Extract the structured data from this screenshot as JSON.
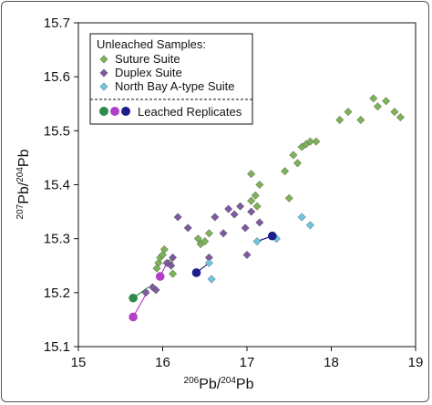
{
  "chart_data": {
    "type": "scatter",
    "xlabel": "206Pb/204Pb",
    "ylabel": "207Pb/204Pb",
    "xlabel_parts": {
      "sup1": "206",
      "base1": "Pb/",
      "sup2": "204",
      "base2": "Pb"
    },
    "ylabel_parts": {
      "sup1": "207",
      "base1": "Pb/",
      "sup2": "204",
      "base2": "Pb"
    },
    "xlim": [
      15,
      19
    ],
    "ylim": [
      15.1,
      15.7
    ],
    "xticks": [
      "15",
      "16",
      "17",
      "18",
      "19"
    ],
    "yticks": [
      "15.1",
      "15.2",
      "15.3",
      "15.4",
      "15.5",
      "15.6",
      "15.7"
    ],
    "grid": false,
    "legend": {
      "position": "top-left",
      "header": "Unleached Samples:",
      "entries": [
        "Suture Suite",
        "Duplex Suite",
        "North Bay A-type Suite"
      ],
      "leached_label": "Leached Replicates"
    },
    "series": [
      {
        "name": "Suture Suite",
        "marker": "diamond",
        "color": "#7db356",
        "points": [
          [
            15.95,
            15.255
          ],
          [
            15.93,
            15.245
          ],
          [
            15.97,
            15.265
          ],
          [
            16.02,
            15.28
          ],
          [
            16.08,
            15.255
          ],
          [
            16.12,
            15.235
          ],
          [
            16.45,
            15.29
          ],
          [
            16.5,
            15.295
          ],
          [
            16.55,
            15.31
          ],
          [
            16.42,
            15.3
          ],
          [
            17.05,
            15.42
          ],
          [
            17.1,
            15.38
          ],
          [
            17.05,
            15.37
          ],
          [
            17.15,
            15.4
          ],
          [
            17.12,
            15.36
          ],
          [
            17.45,
            15.425
          ],
          [
            17.5,
            15.375
          ],
          [
            17.55,
            15.455
          ],
          [
            17.6,
            15.44
          ],
          [
            17.65,
            15.47
          ],
          [
            17.7,
            15.475
          ],
          [
            17.75,
            15.48
          ],
          [
            17.82,
            15.48
          ],
          [
            18.1,
            15.52
          ],
          [
            18.2,
            15.535
          ],
          [
            18.35,
            15.52
          ],
          [
            18.5,
            15.56
          ],
          [
            18.55,
            15.545
          ],
          [
            18.65,
            15.555
          ],
          [
            18.75,
            15.535
          ],
          [
            18.82,
            15.525
          ],
          [
            16.0,
            15.27
          ]
        ]
      },
      {
        "name": "Duplex Suite",
        "marker": "diamond",
        "color": "#7b5aa0",
        "points": [
          [
            15.8,
            15.2
          ],
          [
            15.88,
            15.21
          ],
          [
            15.92,
            15.205
          ],
          [
            16.05,
            15.255
          ],
          [
            16.1,
            15.25
          ],
          [
            16.12,
            15.265
          ],
          [
            16.18,
            15.34
          ],
          [
            16.3,
            15.32
          ],
          [
            16.55,
            15.265
          ],
          [
            16.62,
            15.34
          ],
          [
            16.72,
            15.31
          ],
          [
            16.78,
            15.355
          ],
          [
            16.85,
            15.345
          ],
          [
            16.92,
            15.36
          ],
          [
            17.0,
            15.27
          ],
          [
            16.98,
            15.32
          ],
          [
            17.05,
            15.35
          ],
          [
            17.15,
            15.33
          ]
        ]
      },
      {
        "name": "North Bay A-type Suite",
        "marker": "diamond",
        "color": "#6ec6de",
        "points": [
          [
            16.55,
            15.255
          ],
          [
            16.58,
            15.225
          ],
          [
            17.12,
            15.295
          ],
          [
            17.35,
            15.3
          ],
          [
            17.65,
            15.34
          ],
          [
            17.75,
            15.325
          ]
        ]
      }
    ],
    "leached_replicates": [
      {
        "color": "#2e8b4a",
        "point": [
          15.65,
          15.19
        ],
        "linked_to": [
          15.83,
          15.21
        ]
      },
      {
        "color": "#b040c8",
        "point": [
          15.65,
          15.155
        ],
        "linked_to": [
          15.83,
          15.205
        ]
      },
      {
        "color": "#b040c8",
        "point": [
          15.97,
          15.23
        ],
        "linked_to": [
          16.05,
          15.255
        ]
      },
      {
        "color": "#1c1c8a",
        "point": [
          16.4,
          15.237
        ],
        "linked_to": [
          16.55,
          15.255
        ]
      },
      {
        "color": "#1c1c8a",
        "point": [
          17.3,
          15.305
        ],
        "linked_to": [
          17.12,
          15.295
        ]
      }
    ],
    "legend_marker_colors": {
      "green": "#2e8b4a",
      "magenta": "#b040c8",
      "navy": "#1c1c8a"
    }
  }
}
